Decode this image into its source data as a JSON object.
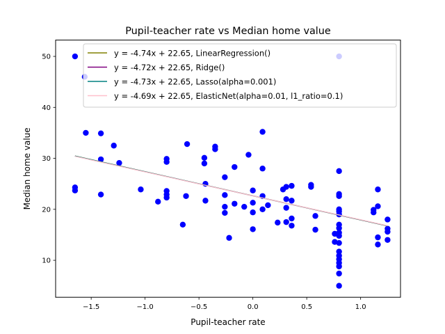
{
  "chart_data": {
    "type": "scatter",
    "title": "Pupil-teacher rate vs Median home value",
    "xlabel": "Pupil-teacher rate",
    "ylabel": "Median home value",
    "xlim": [
      -1.83,
      1.37
    ],
    "ylim": [
      2.75,
      53.2
    ],
    "xticks": [
      -1.5,
      -1.0,
      -0.5,
      0.0,
      0.5,
      1.0
    ],
    "xtick_labels": [
      "−1.5",
      "−1.0",
      "−0.5",
      "0.0",
      "0.5",
      "1.0"
    ],
    "yticks": [
      10,
      20,
      30,
      40,
      50
    ],
    "ytick_labels": [
      "10",
      "20",
      "30",
      "40",
      "50"
    ],
    "grid": false,
    "legend_position": "top-right",
    "scatter": {
      "name": "data",
      "color": "#0000ff",
      "points": [
        [
          -1.65,
          50.0
        ],
        [
          -1.65,
          24.3
        ],
        [
          -1.65,
          23.7
        ],
        [
          -1.56,
          46.0
        ],
        [
          -1.55,
          35.0
        ],
        [
          -1.41,
          34.9
        ],
        [
          -1.41,
          29.8
        ],
        [
          -1.41,
          22.9
        ],
        [
          -1.29,
          32.5
        ],
        [
          -1.24,
          29.1
        ],
        [
          -1.04,
          23.9
        ],
        [
          -0.88,
          21.5
        ],
        [
          -0.8,
          29.9
        ],
        [
          -0.8,
          29.3
        ],
        [
          -0.8,
          23.6
        ],
        [
          -0.8,
          22.9
        ],
        [
          -0.8,
          22.3
        ],
        [
          -0.65,
          17.0
        ],
        [
          -0.62,
          22.6
        ],
        [
          -0.61,
          32.8
        ],
        [
          -0.45,
          30.1
        ],
        [
          -0.45,
          29.0
        ],
        [
          -0.44,
          25.0
        ],
        [
          -0.44,
          21.7
        ],
        [
          -0.35,
          32.3
        ],
        [
          -0.35,
          31.8
        ],
        [
          -0.26,
          26.3
        ],
        [
          -0.26,
          22.8
        ],
        [
          -0.26,
          20.5
        ],
        [
          -0.26,
          19.3
        ],
        [
          -0.22,
          14.4
        ],
        [
          -0.17,
          28.3
        ],
        [
          -0.17,
          21.1
        ],
        [
          -0.08,
          20.5
        ],
        [
          -0.04,
          30.7
        ],
        [
          0.0,
          23.7
        ],
        [
          0.0,
          21.3
        ],
        [
          0.0,
          19.4
        ],
        [
          0.0,
          16.1
        ],
        [
          0.09,
          35.2
        ],
        [
          0.09,
          28.0
        ],
        [
          0.09,
          22.6
        ],
        [
          0.09,
          20.0
        ],
        [
          0.14,
          20.8
        ],
        [
          0.23,
          17.4
        ],
        [
          0.28,
          23.9
        ],
        [
          0.31,
          24.4
        ],
        [
          0.31,
          22.0
        ],
        [
          0.31,
          20.3
        ],
        [
          0.31,
          17.5
        ],
        [
          0.36,
          24.6
        ],
        [
          0.36,
          21.7
        ],
        [
          0.36,
          18.2
        ],
        [
          0.36,
          16.8
        ],
        [
          0.54,
          24.8
        ],
        [
          0.54,
          24.4
        ],
        [
          0.58,
          18.7
        ],
        [
          0.58,
          16.0
        ],
        [
          0.76,
          15.2
        ],
        [
          0.76,
          13.6
        ],
        [
          0.8,
          50.0
        ],
        [
          0.8,
          27.5
        ],
        [
          0.8,
          23.0
        ],
        [
          0.8,
          22.6
        ],
        [
          0.8,
          20.0
        ],
        [
          0.8,
          19.6
        ],
        [
          0.8,
          19.0
        ],
        [
          0.8,
          17.0
        ],
        [
          0.8,
          16.3
        ],
        [
          0.8,
          15.4
        ],
        [
          0.8,
          14.8
        ],
        [
          0.8,
          13.4
        ],
        [
          0.8,
          11.7
        ],
        [
          0.8,
          10.9
        ],
        [
          0.8,
          10.2
        ],
        [
          0.8,
          9.5
        ],
        [
          0.8,
          8.8
        ],
        [
          0.8,
          7.4
        ],
        [
          0.8,
          5.0
        ],
        [
          1.12,
          19.9
        ],
        [
          1.12,
          19.4
        ],
        [
          1.16,
          23.9
        ],
        [
          1.16,
          20.6
        ],
        [
          1.16,
          14.5
        ],
        [
          1.16,
          13.1
        ],
        [
          1.25,
          18.0
        ],
        [
          1.25,
          16.2
        ],
        [
          1.25,
          15.6
        ],
        [
          1.25,
          14.0
        ]
      ]
    },
    "series": [
      {
        "name": "y = -4.74x + 22.65, LinearRegression()",
        "slope": -4.74,
        "intercept": 22.65,
        "color": "#808000",
        "x_range": [
          -1.65,
          1.25
        ]
      },
      {
        "name": "y = -4.72x + 22.65, Ridge()",
        "slope": -4.72,
        "intercept": 22.65,
        "color": "#800080",
        "x_range": [
          -1.65,
          1.25
        ]
      },
      {
        "name": "y = -4.73x + 22.65, Lasso(alpha=0.001)",
        "slope": -4.73,
        "intercept": 22.65,
        "color": "#008080",
        "x_range": [
          -1.65,
          1.25
        ]
      },
      {
        "name": "y = -4.69x + 22.65, ElasticNet(alpha=0.01, l1_ratio=0.1)",
        "slope": -4.69,
        "intercept": 22.65,
        "color": "#ffc0cb",
        "x_range": [
          -1.65,
          1.25
        ]
      }
    ]
  }
}
